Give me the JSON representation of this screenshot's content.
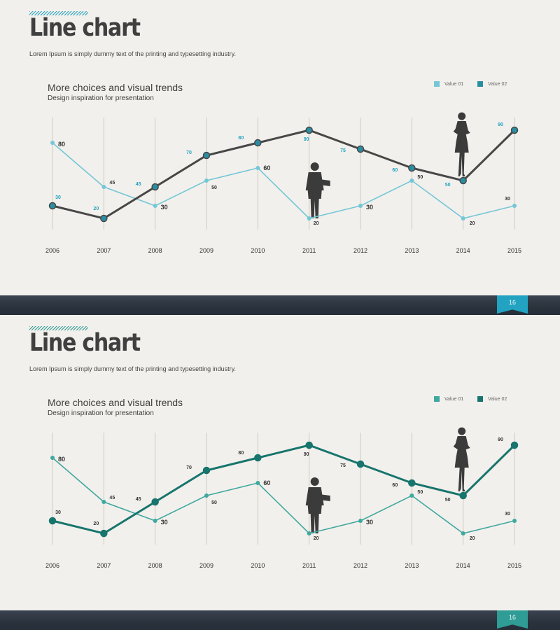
{
  "slides": [
    {
      "title": "Line chart",
      "subtitle": "Lorem Ipsum is simply dummy text of the printing and typesetting industry.",
      "chart_heading": "More choices and visual trends",
      "chart_subheading": "Design inspiration for presentation",
      "page_number": "16",
      "colors": {
        "series1": "#74c7d6",
        "series2": "#474747",
        "series2_marker": "#2a8ea3",
        "label1": "#333333",
        "label2": "#22a3c2",
        "accent": "#22a3c2"
      }
    },
    {
      "title": "Line chart",
      "subtitle": "Lorem Ipsum is simply dummy text of the printing and typesetting industry.",
      "chart_heading": "More choices and visual trends",
      "chart_subheading": "Design inspiration for presentation",
      "page_number": "16",
      "colors": {
        "series1": "#3fa89f",
        "series2": "#17756d",
        "series2_marker": "#17756d",
        "label1": "#333333",
        "label2": "#333333",
        "accent": "#2f9c95"
      }
    }
  ],
  "chart_data": [
    {
      "type": "line",
      "categories": [
        "2006",
        "2007",
        "2008",
        "2009",
        "2010",
        "2011",
        "2012",
        "2013",
        "2014",
        "2015"
      ],
      "series": [
        {
          "name": "Value 01",
          "values": [
            80,
            45,
            30,
            50,
            60,
            20,
            30,
            50,
            20,
            30
          ]
        },
        {
          "name": "Value 02",
          "values": [
            30,
            20,
            45,
            70,
            80,
            90,
            75,
            60,
            50,
            90
          ]
        }
      ],
      "ylim": [
        10,
        110
      ],
      "grid": "vertical",
      "legend": "top-right"
    },
    {
      "type": "line",
      "categories": [
        "2006",
        "2007",
        "2008",
        "2009",
        "2010",
        "2011",
        "2012",
        "2013",
        "2014",
        "2015"
      ],
      "series": [
        {
          "name": "Value 01",
          "values": [
            80,
            45,
            30,
            50,
            60,
            20,
            30,
            50,
            20,
            30
          ]
        },
        {
          "name": "Value 02",
          "values": [
            30,
            20,
            45,
            70,
            80,
            90,
            75,
            60,
            50,
            90
          ]
        }
      ],
      "ylim": [
        10,
        110
      ],
      "grid": "vertical",
      "legend": "top-right"
    }
  ]
}
